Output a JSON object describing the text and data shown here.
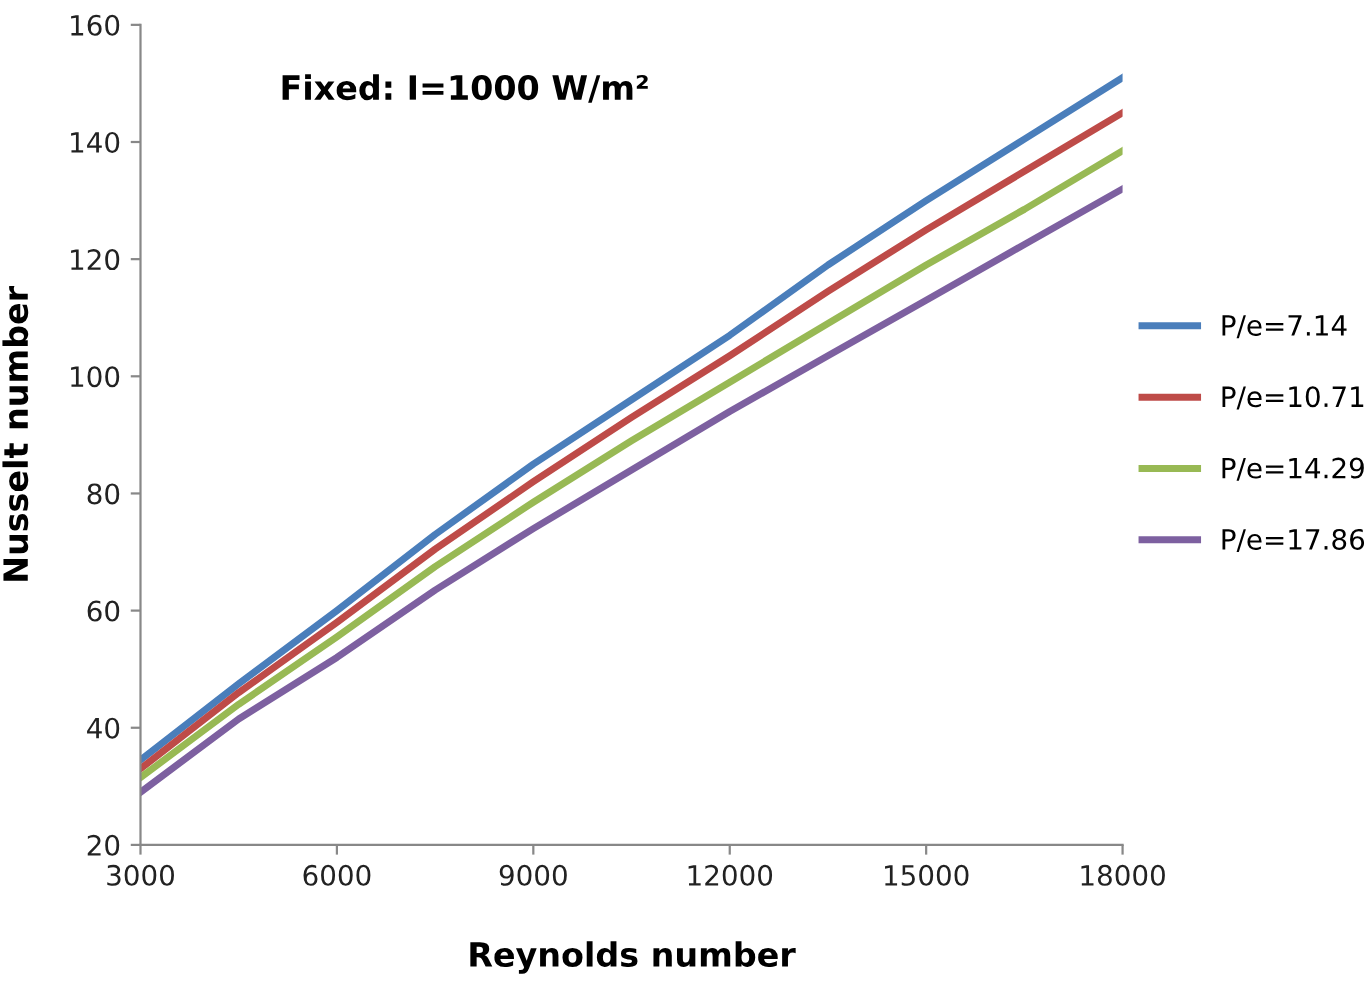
{
  "chart_data": {
    "type": "line",
    "title": "Fixed: I=1000 W/m²",
    "xlabel": "Reynolds number",
    "ylabel": "Nusselt number",
    "x": [
      3000,
      4500,
      6000,
      7500,
      9000,
      10500,
      12000,
      13500,
      15000,
      16500,
      18000
    ],
    "series": [
      {
        "name": "P/e=7.14",
        "color": "#4a7ebb",
        "values": [
          34.5,
          47.5,
          60,
          73,
          85,
          96,
          107,
          119,
          130,
          140.5,
          151
        ]
      },
      {
        "name": "P/e=10.71",
        "color": "#be4b48",
        "values": [
          33,
          46,
          58,
          70.5,
          82,
          93,
          103.5,
          114.5,
          125,
          135,
          145
        ]
      },
      {
        "name": "P/e=14.29",
        "color": "#98b954",
        "values": [
          31.5,
          44,
          55.5,
          67.5,
          78.5,
          89,
          99,
          109,
          119,
          128.5,
          138.5
        ]
      },
      {
        "name": "P/e=17.86",
        "color": "#7d60a0",
        "values": [
          29,
          41.5,
          52,
          63.5,
          74,
          84,
          94,
          103.5,
          113,
          122.5,
          132
        ]
      }
    ],
    "xlim": [
      3000,
      18000
    ],
    "ylim": [
      20,
      160
    ],
    "xticks": [
      3000,
      6000,
      9000,
      12000,
      15000,
      18000
    ],
    "yticks": [
      20,
      40,
      60,
      80,
      100,
      120,
      140,
      160
    ],
    "grid": false,
    "legend": "right",
    "marker": "none",
    "line_style": "solid"
  }
}
